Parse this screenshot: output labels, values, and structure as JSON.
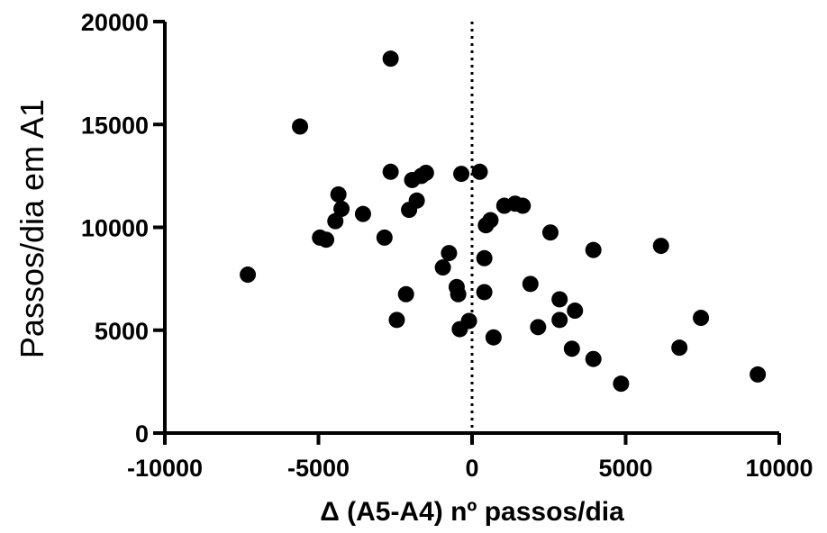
{
  "chart_data": {
    "type": "scatter",
    "xlabel": "Δ (A5-A4) nº passos/dia",
    "ylabel": "Passos/dia em A1",
    "xlim": [
      -10000,
      10000
    ],
    "ylim": [
      0,
      20000
    ],
    "xticks": [
      -10000,
      -5000,
      0,
      5000,
      10000
    ],
    "yticks": [
      0,
      5000,
      10000,
      15000,
      20000
    ],
    "x_tick_labels": [
      "-10000",
      "-5000",
      "0",
      "5000",
      "10000"
    ],
    "y_tick_labels": [
      "0",
      "5000",
      "10000",
      "15000",
      "20000"
    ],
    "reference_line": {
      "x": 0,
      "style": "dotted"
    },
    "grid": false,
    "colors": {
      "marker": "#000000",
      "axis": "#000000"
    },
    "points": [
      {
        "x": -7300,
        "y": 7700
      },
      {
        "x": -5600,
        "y": 14900
      },
      {
        "x": -4950,
        "y": 9500
      },
      {
        "x": -4750,
        "y": 9400
      },
      {
        "x": -4450,
        "y": 10300
      },
      {
        "x": -4350,
        "y": 11600
      },
      {
        "x": -4250,
        "y": 10900
      },
      {
        "x": -3550,
        "y": 10650
      },
      {
        "x": -2850,
        "y": 9500
      },
      {
        "x": -2650,
        "y": 18200
      },
      {
        "x": -2650,
        "y": 12700
      },
      {
        "x": -2450,
        "y": 5500
      },
      {
        "x": -2150,
        "y": 6750
      },
      {
        "x": -2050,
        "y": 10850
      },
      {
        "x": -1950,
        "y": 12300
      },
      {
        "x": -1800,
        "y": 11300
      },
      {
        "x": -1650,
        "y": 12500
      },
      {
        "x": -1500,
        "y": 12650
      },
      {
        "x": -950,
        "y": 8050
      },
      {
        "x": -750,
        "y": 8750
      },
      {
        "x": -500,
        "y": 7100
      },
      {
        "x": -450,
        "y": 6750
      },
      {
        "x": -400,
        "y": 5050
      },
      {
        "x": -350,
        "y": 12600
      },
      {
        "x": -100,
        "y": 5450
      },
      {
        "x": 250,
        "y": 12700
      },
      {
        "x": 400,
        "y": 8500
      },
      {
        "x": 400,
        "y": 6850
      },
      {
        "x": 450,
        "y": 10100
      },
      {
        "x": 600,
        "y": 10350
      },
      {
        "x": 700,
        "y": 4650
      },
      {
        "x": 1050,
        "y": 11050
      },
      {
        "x": 1400,
        "y": 11150
      },
      {
        "x": 1650,
        "y": 11050
      },
      {
        "x": 1900,
        "y": 7250
      },
      {
        "x": 2150,
        "y": 5150
      },
      {
        "x": 2550,
        "y": 9750
      },
      {
        "x": 2850,
        "y": 6500
      },
      {
        "x": 2850,
        "y": 5500
      },
      {
        "x": 3250,
        "y": 4100
      },
      {
        "x": 3350,
        "y": 5950
      },
      {
        "x": 3950,
        "y": 8900
      },
      {
        "x": 3950,
        "y": 3600
      },
      {
        "x": 4850,
        "y": 2400
      },
      {
        "x": 6150,
        "y": 9100
      },
      {
        "x": 6750,
        "y": 4150
      },
      {
        "x": 7450,
        "y": 5600
      },
      {
        "x": 9300,
        "y": 2850
      }
    ]
  }
}
